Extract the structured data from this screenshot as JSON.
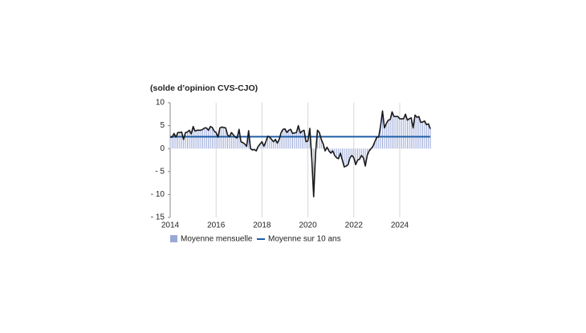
{
  "chart_data": {
    "type": "bar",
    "ylabel": "(solde d’opinion CVS-CJO)",
    "xlim": [
      2014,
      2025.47
    ],
    "xticks": [
      2014,
      2016,
      2018,
      2020,
      2022,
      2024
    ],
    "ylim": [
      -15,
      10
    ],
    "yticks": [
      10,
      5,
      0,
      {
        "value": -5,
        "label": "- 5"
      },
      {
        "value": -10,
        "label": "- 10"
      },
      {
        "value": -15,
        "label": "- 15"
      }
    ],
    "grid": true,
    "legend": "bottom",
    "x": [
      2014,
      2014.083,
      2014.167,
      2014.25,
      2014.333,
      2014.417,
      2014.5,
      2014.583,
      2014.667,
      2014.75,
      2014.833,
      2014.917,
      2015,
      2015.083,
      2015.167,
      2015.25,
      2015.333,
      2015.417,
      2015.5,
      2015.583,
      2015.667,
      2015.75,
      2015.833,
      2015.917,
      2016,
      2016.083,
      2016.167,
      2016.25,
      2016.333,
      2016.417,
      2016.5,
      2016.583,
      2016.667,
      2016.75,
      2016.833,
      2016.917,
      2017,
      2017.083,
      2017.167,
      2017.25,
      2017.333,
      2017.417,
      2017.5,
      2017.583,
      2017.667,
      2017.75,
      2017.833,
      2017.917,
      2018,
      2018.083,
      2018.167,
      2018.25,
      2018.333,
      2018.417,
      2018.5,
      2018.583,
      2018.667,
      2018.75,
      2018.833,
      2018.917,
      2019,
      2019.083,
      2019.167,
      2019.25,
      2019.333,
      2019.417,
      2019.5,
      2019.583,
      2019.667,
      2019.75,
      2019.833,
      2019.917,
      2020,
      2020.083,
      2020.167,
      2020.25,
      2020.333,
      2020.417,
      2020.5,
      2020.583,
      2020.667,
      2020.75,
      2020.833,
      2020.917,
      2021,
      2021.083,
      2021.167,
      2021.25,
      2021.333,
      2021.417,
      2021.5,
      2021.583,
      2021.667,
      2021.75,
      2021.833,
      2021.917,
      2022,
      2022.083,
      2022.167,
      2022.25,
      2022.333,
      2022.417,
      2022.5,
      2022.583,
      2022.667,
      2022.75,
      2022.833,
      2022.917,
      2023,
      2023.083,
      2023.167,
      2023.25,
      2023.333,
      2023.417,
      2023.5,
      2023.583,
      2023.667,
      2023.75,
      2023.833,
      2023.917,
      2024,
      2024.083,
      2024.167,
      2024.25,
      2024.333,
      2024.417,
      2024.5,
      2024.583,
      2024.667,
      2024.75,
      2024.833,
      2024.917,
      2025,
      2025.083,
      2025.167,
      2025.25,
      2025.333
    ],
    "series": [
      {
        "name": "Moyenne mensuelle",
        "color": "#9aa8d8",
        "line_color": "#1a1a1a",
        "values": [
          2.5,
          2.5,
          3.3,
          2.5,
          3.5,
          3.5,
          3.6,
          2,
          3.5,
          3.6,
          4,
          3.2,
          4.8,
          3.8,
          4,
          4,
          4,
          4.2,
          4.5,
          4.5,
          4,
          4.8,
          4.6,
          3.8,
          3.5,
          2.5,
          4.5,
          4.7,
          4.6,
          4.5,
          3,
          2.6,
          3.5,
          3,
          2.5,
          2.3,
          4.2,
          1.5,
          1.3,
          1,
          0.5,
          3.9,
          0,
          -0.3,
          -0.2,
          -0.5,
          0.5,
          1,
          1.5,
          0.5,
          1.5,
          2.7,
          2.5,
          2,
          1.5,
          2,
          1.2,
          2,
          3.5,
          4.2,
          4.3,
          3.5,
          4,
          4.2,
          3.3,
          3.4,
          3.5,
          5,
          3.4,
          3.8,
          4,
          1.5,
          1.7,
          4.4,
          -2,
          -10.5,
          -1,
          4,
          3.5,
          2,
          1,
          -0.5,
          0.3,
          -0.5,
          -1,
          -0.5,
          -1.5,
          -2,
          -2.2,
          -1,
          -2.5,
          -4,
          -3.8,
          -3.5,
          -2,
          -1.5,
          -2,
          -3.5,
          -2.5,
          -2.3,
          -1.5,
          -2,
          -3.8,
          -1.5,
          -0.5,
          0,
          0.5,
          1.5,
          2.5,
          2.5,
          5,
          8.2,
          4.5,
          5.5,
          6.2,
          6.3,
          8,
          7,
          7,
          7,
          6.5,
          6.5,
          6.5,
          7.5,
          6.2,
          6.5,
          6.7,
          4.5,
          7.3,
          6.8,
          7,
          5.7,
          5.8,
          6,
          5.2,
          5.4,
          4.3
        ]
      },
      {
        "name": "Moyenne sur 10 ans",
        "color": "#1f5ea8",
        "value": 2.6
      }
    ]
  }
}
